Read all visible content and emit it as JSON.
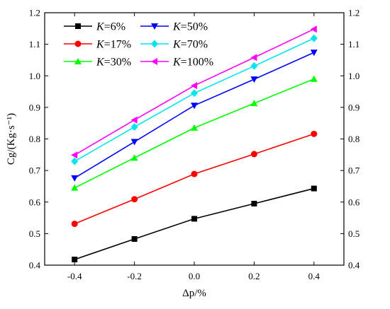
{
  "chart_data": {
    "type": "line",
    "x": [
      -0.4,
      -0.2,
      0.0,
      0.2,
      0.4
    ],
    "x_tick_labels": [
      "-0.4",
      "-0.2",
      "0.0",
      "0.2",
      "0.4"
    ],
    "y_tick_labels": [
      "0.4",
      "0.5",
      "0.6",
      "0.7",
      "0.8",
      "0.9",
      "1.0",
      "1.1",
      "1.2"
    ],
    "y_ticks": [
      0.4,
      0.5,
      0.6,
      0.7,
      0.8,
      0.9,
      1.0,
      1.1,
      1.2
    ],
    "xlim": [
      -0.5,
      0.5
    ],
    "ylim": [
      0.4,
      1.2
    ],
    "xlabel": "Δp/%",
    "ylabel": "Cg/(Kg·s⁻¹)",
    "grid": false,
    "legend_position": "top-left",
    "series": [
      {
        "name": "K=6%",
        "var": "K",
        "value_text": "=6%",
        "color": "#000000",
        "marker": "square",
        "values": [
          0.418,
          0.483,
          0.547,
          0.595,
          0.643
        ]
      },
      {
        "name": "K=17%",
        "var": "K",
        "value_text": "=17%",
        "color": "#ff0000",
        "marker": "circle",
        "values": [
          0.531,
          0.609,
          0.689,
          0.752,
          0.816
        ]
      },
      {
        "name": "K=30%",
        "var": "K",
        "value_text": "=30%",
        "color": "#00ff00",
        "marker": "triangle-up",
        "values": [
          0.645,
          0.74,
          0.835,
          0.913,
          0.99
        ]
      },
      {
        "name": "K=50%",
        "var": "K",
        "value_text": "=50%",
        "color": "#0000ff",
        "marker": "triangle-down",
        "values": [
          0.676,
          0.791,
          0.906,
          0.989,
          1.074
        ]
      },
      {
        "name": "K=70%",
        "var": "K",
        "value_text": "=70%",
        "color": "#00e5ee",
        "marker": "diamond",
        "values": [
          0.729,
          0.838,
          0.945,
          1.031,
          1.119
        ]
      },
      {
        "name": "K=100%",
        "var": "K",
        "value_text": "=100%",
        "color": "#ff00ff",
        "marker": "triangle-left",
        "values": [
          0.749,
          0.86,
          0.969,
          1.058,
          1.148
        ]
      }
    ]
  }
}
